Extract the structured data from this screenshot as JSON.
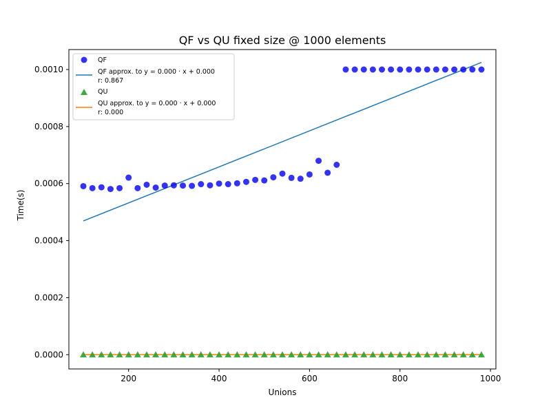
{
  "chart_data": {
    "type": "scatter",
    "title": "QF vs QU fixed size @ 1000 elements",
    "xlabel": "Unions",
    "ylabel": "Time(s)",
    "xlim": [
      68,
      1012
    ],
    "ylim": [
      -5e-05,
      0.00107
    ],
    "x_ticks": [
      200,
      400,
      600,
      800,
      1000
    ],
    "x_tick_labels": [
      "200",
      "400",
      "600",
      "800",
      "1000"
    ],
    "y_ticks": [
      0.0,
      0.0002,
      0.0004,
      0.0006,
      0.0008,
      0.001
    ],
    "y_tick_labels": [
      "0.0000",
      "0.0002",
      "0.0004",
      "0.0006",
      "0.0008",
      "0.0010"
    ],
    "x": [
      100,
      120,
      140,
      160,
      180,
      200,
      220,
      240,
      260,
      280,
      300,
      320,
      340,
      360,
      380,
      400,
      420,
      440,
      460,
      480,
      500,
      520,
      540,
      560,
      580,
      600,
      620,
      640,
      660,
      680,
      700,
      720,
      740,
      760,
      780,
      800,
      820,
      840,
      860,
      880,
      900,
      920,
      940,
      960,
      980
    ],
    "series": [
      {
        "name": "QF",
        "kind": "scatter",
        "marker": "circle",
        "color": "#0000ee",
        "values": [
          0.000591,
          0.000584,
          0.000587,
          0.000581,
          0.000584,
          0.000621,
          0.000584,
          0.000596,
          0.000586,
          0.000593,
          0.000594,
          0.000593,
          0.000592,
          0.000598,
          0.000594,
          0.0006,
          0.000598,
          0.000601,
          0.000606,
          0.000613,
          0.000611,
          0.000622,
          0.000635,
          0.00062,
          0.000617,
          0.000632,
          0.00068,
          0.000638,
          0.000666,
          0.001,
          0.001,
          0.001,
          0.001,
          0.001,
          0.001,
          0.001,
          0.001,
          0.001,
          0.001,
          0.001,
          0.001,
          0.001,
          0.001,
          0.001,
          0.001
        ]
      },
      {
        "name": "QU",
        "kind": "scatter",
        "marker": "triangle",
        "color": "#2ca02c",
        "values": [
          0,
          0,
          0,
          0,
          0,
          0,
          0,
          0,
          0,
          0,
          0,
          0,
          0,
          0,
          0,
          0,
          0,
          0,
          0,
          0,
          0,
          0,
          0,
          0,
          0,
          0,
          0,
          0,
          0,
          0,
          0,
          0,
          0,
          0,
          0,
          0,
          0,
          0,
          0,
          0,
          0,
          0,
          0,
          0,
          0
        ]
      }
    ],
    "fit_lines": [
      {
        "name": "QF approx.",
        "color": "#1f77b4",
        "x": [
          100,
          980
        ],
        "y": [
          0.000469,
          0.001025
        ]
      },
      {
        "name": "QU approx.",
        "color": "#ff7f0e",
        "x": [
          100,
          980
        ],
        "y": [
          0.0,
          0.0
        ]
      }
    ],
    "legend": {
      "placement": "top-left",
      "entries": [
        {
          "key": "qf",
          "label": "QF",
          "sub": ""
        },
        {
          "key": "qf_fit",
          "label": "QF approx. to y = 0.000 · x + 0.000",
          "sub": "r: 0.867"
        },
        {
          "key": "qu",
          "label": "QU",
          "sub": ""
        },
        {
          "key": "qu_fit",
          "label": "QU approx. to y = 0.000 · x + 0.000",
          "sub": "r: 0.000"
        }
      ]
    }
  }
}
